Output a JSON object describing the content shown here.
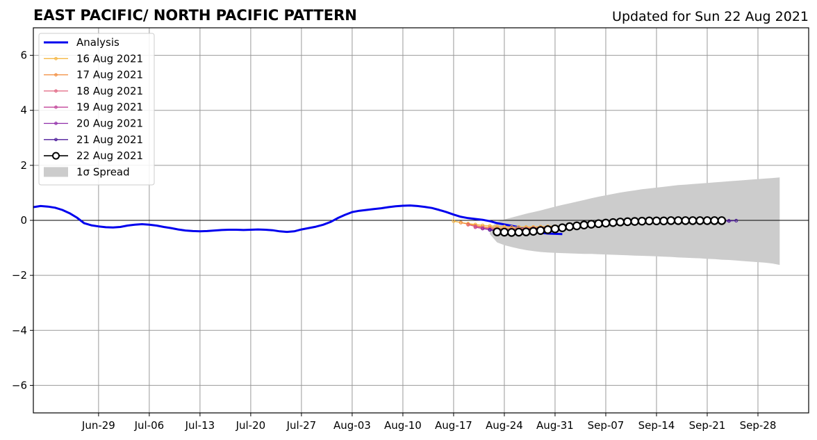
{
  "chart_data": {
    "type": "line",
    "title": "EAST PACIFIC/ NORTH PACIFIC PATTERN",
    "subtitle": "Updated for Sun 22 Aug 2021",
    "xlabel": "",
    "ylabel": "",
    "x_start": "2021-06-20",
    "xlim": [
      "2021-06-20",
      "2021-10-05"
    ],
    "ylim": [
      -7,
      7
    ],
    "yticks": [
      -6,
      -4,
      -2,
      0,
      2,
      4,
      6
    ],
    "ytick_labels": [
      "−6",
      "−4",
      "−2",
      "0",
      "2",
      "4",
      "6"
    ],
    "xticks": [
      "2021-06-29",
      "2021-07-06",
      "2021-07-13",
      "2021-07-20",
      "2021-07-27",
      "2021-08-03",
      "2021-08-10",
      "2021-08-17",
      "2021-08-24",
      "2021-08-31",
      "2021-09-07",
      "2021-09-14",
      "2021-09-21",
      "2021-09-28"
    ],
    "xtick_labels": [
      "Jun-29",
      "Jul-06",
      "Jul-13",
      "Jul-20",
      "Jul-27",
      "Aug-03",
      "Aug-10",
      "Aug-17",
      "Aug-24",
      "Aug-31",
      "Sep-07",
      "Sep-14",
      "Sep-21",
      "Sep-28"
    ],
    "grid": true,
    "legend_position": "upper-left",
    "analysis": {
      "name": "Analysis",
      "color": "#0000ee",
      "start": "2021-06-20",
      "values": [
        0.48,
        0.52,
        0.5,
        0.46,
        0.38,
        0.26,
        0.1,
        -0.1,
        -0.18,
        -0.22,
        -0.25,
        -0.26,
        -0.24,
        -0.19,
        -0.16,
        -0.14,
        -0.16,
        -0.19,
        -0.24,
        -0.28,
        -0.33,
        -0.37,
        -0.39,
        -0.4,
        -0.39,
        -0.37,
        -0.35,
        -0.34,
        -0.34,
        -0.35,
        -0.34,
        -0.33,
        -0.34,
        -0.36,
        -0.4,
        -0.42,
        -0.4,
        -0.33,
        -0.28,
        -0.23,
        -0.16,
        -0.06,
        0.08,
        0.2,
        0.3,
        0.35,
        0.38,
        0.41,
        0.44,
        0.48,
        0.51,
        0.53,
        0.54,
        0.52,
        0.49,
        0.45,
        0.38,
        0.3,
        0.21,
        0.13,
        0.08,
        0.05,
        0.02,
        -0.03,
        -0.1,
        -0.15,
        -0.2,
        -0.25,
        -0.32,
        -0.4,
        -0.45,
        -0.48,
        -0.49,
        -0.5
      ]
    },
    "forecasts": [
      {
        "name": "16 Aug 2021",
        "color": "#f5b642",
        "start": "2021-08-17",
        "values": [
          -0.03,
          -0.08,
          -0.12,
          -0.15,
          -0.18,
          -0.2,
          -0.22,
          -0.23,
          -0.24,
          -0.24,
          -0.24,
          -0.24,
          -0.23,
          -0.22,
          -0.21,
          -0.2,
          -0.19,
          -0.18,
          -0.17,
          -0.16,
          -0.15,
          -0.14,
          -0.13,
          -0.12,
          -0.11,
          -0.11,
          -0.1,
          -0.1,
          -0.09,
          -0.09,
          -0.08,
          -0.08,
          -0.07,
          -0.07,
          -0.06
        ]
      },
      {
        "name": "17 Aug 2021",
        "color": "#f28c3c",
        "start": "2021-08-18",
        "values": [
          -0.08,
          -0.14,
          -0.19,
          -0.23,
          -0.26,
          -0.28,
          -0.29,
          -0.29,
          -0.29,
          -0.28,
          -0.27,
          -0.26,
          -0.24,
          -0.23,
          -0.21,
          -0.2,
          -0.19,
          -0.18,
          -0.17,
          -0.16,
          -0.15,
          -0.14,
          -0.13,
          -0.12,
          -0.11,
          -0.1,
          -0.1,
          -0.09,
          -0.09,
          -0.08,
          -0.08,
          -0.07,
          -0.07,
          -0.06,
          -0.06
        ]
      },
      {
        "name": "18 Aug 2021",
        "color": "#e0607e",
        "start": "2021-08-19",
        "values": [
          -0.16,
          -0.22,
          -0.27,
          -0.3,
          -0.32,
          -0.33,
          -0.33,
          -0.32,
          -0.31,
          -0.29,
          -0.27,
          -0.25,
          -0.23,
          -0.21,
          -0.19,
          -0.17,
          -0.16,
          -0.14,
          -0.13,
          -0.12,
          -0.11,
          -0.1,
          -0.09,
          -0.08,
          -0.08,
          -0.07,
          -0.07,
          -0.06,
          -0.06,
          -0.05,
          -0.05,
          -0.05,
          -0.04,
          -0.04,
          -0.04
        ]
      },
      {
        "name": "19 Aug 2021",
        "color": "#c2449a",
        "start": "2021-08-20",
        "values": [
          -0.25,
          -0.3,
          -0.33,
          -0.35,
          -0.35,
          -0.34,
          -0.33,
          -0.31,
          -0.29,
          -0.27,
          -0.25,
          -0.23,
          -0.21,
          -0.19,
          -0.17,
          -0.15,
          -0.14,
          -0.12,
          -0.11,
          -0.1,
          -0.09,
          -0.08,
          -0.07,
          -0.07,
          -0.06,
          -0.06,
          -0.05,
          -0.05,
          -0.04,
          -0.04,
          -0.04,
          -0.03,
          -0.03,
          -0.03,
          -0.03
        ]
      },
      {
        "name": "20 Aug 2021",
        "color": "#8e2aa8",
        "start": "2021-08-21",
        "values": [
          -0.3,
          -0.34,
          -0.36,
          -0.37,
          -0.36,
          -0.35,
          -0.33,
          -0.31,
          -0.29,
          -0.27,
          -0.25,
          -0.23,
          -0.21,
          -0.19,
          -0.17,
          -0.15,
          -0.13,
          -0.12,
          -0.1,
          -0.09,
          -0.08,
          -0.07,
          -0.06,
          -0.06,
          -0.05,
          -0.05,
          -0.04,
          -0.04,
          -0.04,
          -0.03,
          -0.03,
          -0.03,
          -0.03,
          -0.02,
          -0.02
        ]
      },
      {
        "name": "21 Aug 2021",
        "color": "#4b1a9a",
        "start": "2021-08-22",
        "values": [
          -0.35,
          -0.38,
          -0.39,
          -0.39,
          -0.38,
          -0.36,
          -0.34,
          -0.32,
          -0.29,
          -0.27,
          -0.24,
          -0.22,
          -0.2,
          -0.17,
          -0.15,
          -0.13,
          -0.12,
          -0.1,
          -0.09,
          -0.08,
          -0.07,
          -0.06,
          -0.05,
          -0.05,
          -0.04,
          -0.04,
          -0.03,
          -0.03,
          -0.03,
          -0.02,
          -0.02,
          -0.02,
          -0.02,
          -0.02,
          -0.01
        ]
      },
      {
        "name": "22 Aug 2021",
        "color": "#000000",
        "start": "2021-08-23",
        "values": [
          -0.42,
          -0.43,
          -0.44,
          -0.43,
          -0.42,
          -0.4,
          -0.37,
          -0.34,
          -0.31,
          -0.27,
          -0.23,
          -0.2,
          -0.17,
          -0.14,
          -0.12,
          -0.1,
          -0.08,
          -0.06,
          -0.05,
          -0.04,
          -0.03,
          -0.02,
          -0.02,
          -0.02,
          -0.01,
          -0.01,
          -0.01,
          -0.01,
          -0.01,
          -0.01,
          -0.01,
          -0.01
        ]
      }
    ],
    "spread": {
      "name": "1σ Spread",
      "color": "#cccccc",
      "start": "2021-08-22",
      "upper": [
        -0.3,
        -0.05,
        0.03,
        0.1,
        0.17,
        0.24,
        0.3,
        0.36,
        0.43,
        0.5,
        0.56,
        0.62,
        0.68,
        0.74,
        0.8,
        0.86,
        0.91,
        0.96,
        1.01,
        1.05,
        1.09,
        1.13,
        1.16,
        1.19,
        1.22,
        1.25,
        1.28,
        1.3,
        1.32,
        1.34,
        1.36,
        1.38,
        1.4,
        1.42,
        1.44,
        1.46,
        1.48,
        1.5,
        1.52,
        1.54,
        1.56
      ],
      "lower": [
        -0.5,
        -0.8,
        -0.9,
        -0.97,
        -1.03,
        -1.08,
        -1.12,
        -1.15,
        -1.17,
        -1.18,
        -1.19,
        -1.2,
        -1.21,
        -1.22,
        -1.22,
        -1.23,
        -1.24,
        -1.25,
        -1.26,
        -1.27,
        -1.28,
        -1.29,
        -1.3,
        -1.31,
        -1.32,
        -1.33,
        -1.35,
        -1.36,
        -1.37,
        -1.38,
        -1.4,
        -1.41,
        -1.43,
        -1.44,
        -1.46,
        -1.48,
        -1.5,
        -1.52,
        -1.54,
        -1.57,
        -1.62
      ]
    }
  }
}
